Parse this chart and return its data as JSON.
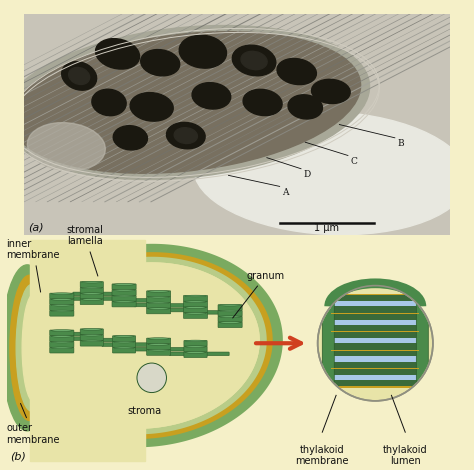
{
  "background_color_top": "#f5f0c8",
  "background_color_bot": "#d4e8c8",
  "scale_bar_text": "1 μm",
  "panel_a_label": "(a)",
  "panel_b_label": "(b)",
  "chloroplast_outer_color": "#7aaa60",
  "chloroplast_rim_color": "#b8cc88",
  "stroma_color": "#e8e4a8",
  "granum_dark": "#2a5a2a",
  "granum_mid": "#4a8a4a",
  "granum_light": "#6aaa6a",
  "thylakoid_membrane_color": "#3a6a3a",
  "thylakoid_lumen_color": "#a8c8e8",
  "gold_color": "#c8a020",
  "arrow_color": "#d04020",
  "text_color": "#111111",
  "label_fontsize": 7,
  "labels": {
    "stromal_lamella": "stromal\nlamella",
    "inner_membrane": "inner\nmembrane",
    "granum": "granum",
    "stroma": "stroma",
    "outer_membrane": "outer\nmembrane",
    "thylakoid_membrane": "thylakoid\nmembrane",
    "thylakoid_lumen": "thylakoid\nlumen"
  }
}
